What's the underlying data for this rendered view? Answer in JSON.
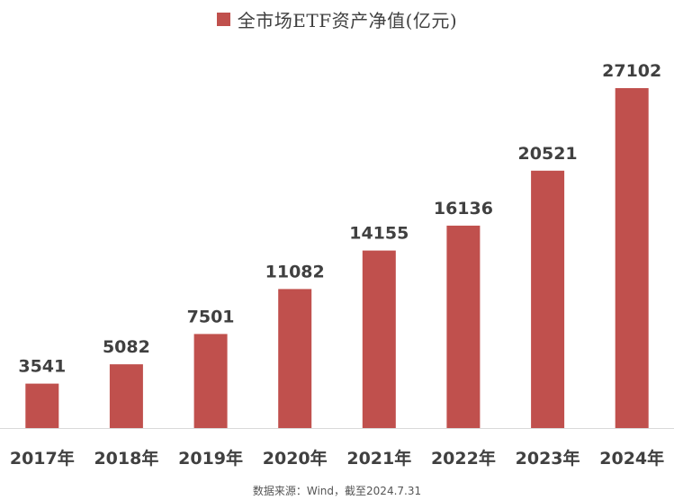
{
  "chart_data": {
    "type": "bar",
    "legend": "全市场ETF资产净值(亿元)",
    "legend_position": "top-center",
    "categories": [
      "2017年",
      "2018年",
      "2019年",
      "2020年",
      "2021年",
      "2022年",
      "2023年",
      "2024年"
    ],
    "series": [
      {
        "name": "全市场ETF资产净值(亿元)",
        "values": [
          3541,
          5082,
          7501,
          11082,
          14155,
          16136,
          20521,
          27102
        ]
      }
    ],
    "ylim": [
      0,
      30000
    ],
    "grid": false,
    "bar_color": "#c0504d",
    "axis_color": "#d9d9d9"
  },
  "footer": {
    "source": "数据来源：Wind，截至2024.7.31"
  }
}
